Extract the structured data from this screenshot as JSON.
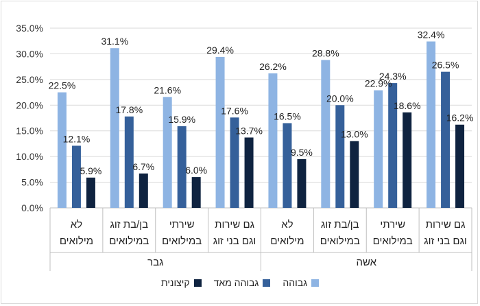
{
  "chart_data": {
    "type": "bar",
    "ylim": [
      0,
      35
    ],
    "ytick_step": 5,
    "y_tick_format": "percent_1dp",
    "grid": true,
    "legend_position": "bottom",
    "groups": [
      {
        "label": "גבר",
        "categories": [
          "לא\nמילואים",
          "בן/בת זוג\nבמילואים",
          "שירתי\nבמילואים",
          "גם שירות\nוגם בני זוג"
        ]
      },
      {
        "label": "אשה",
        "categories": [
          "לא\nמילואים",
          "בן/בת זוג\nבמילואים",
          "שירתי\nבמילואים",
          "גם שירות\nוגם בני זוג"
        ]
      }
    ],
    "series": [
      {
        "name": "גבוהה",
        "color": "#8eb4e3",
        "values": [
          22.5,
          31.1,
          21.6,
          29.4,
          26.2,
          28.8,
          22.9,
          32.4
        ]
      },
      {
        "name": "גבוהה מאד",
        "color": "#35609a",
        "values": [
          12.1,
          17.8,
          15.9,
          17.6,
          16.5,
          20.0,
          24.3,
          26.5
        ]
      },
      {
        "name": "קיצונית",
        "color": "#0f2340",
        "values": [
          5.9,
          6.7,
          6.0,
          13.7,
          9.5,
          13.0,
          18.6,
          16.2
        ]
      }
    ]
  }
}
